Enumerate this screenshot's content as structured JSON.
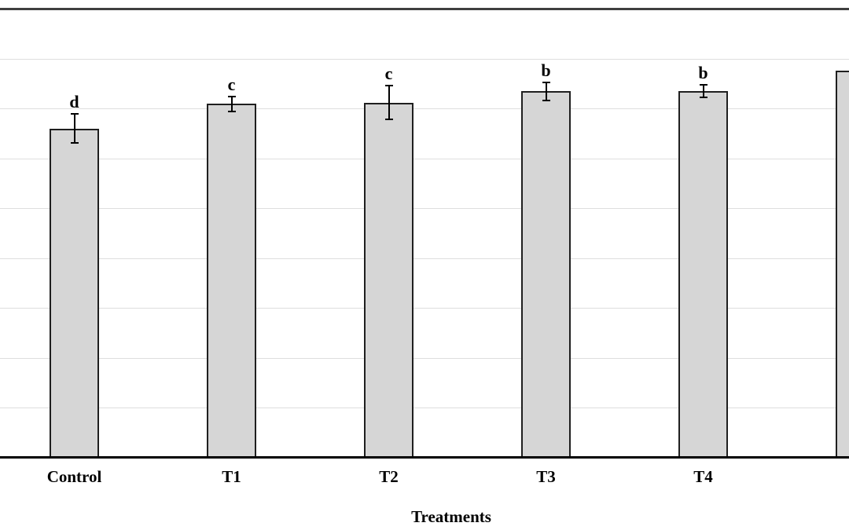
{
  "chart_data": {
    "type": "bar",
    "title": "",
    "xlabel": "Treatments",
    "ylabel": "",
    "categories": [
      "Control",
      "T1",
      "T2",
      "T3",
      "T4",
      ""
    ],
    "values": [
      6.6,
      7.1,
      7.12,
      7.35,
      7.35,
      7.76
    ],
    "error_bars": [
      0.29,
      0.15,
      0.34,
      0.18,
      0.13,
      0
    ],
    "sig_letters": [
      "d",
      "c",
      "c",
      "b",
      "b",
      ""
    ],
    "value_note": "y-axis tick labels are cropped out of the visible frame; values are measured in horizontal-gridline intervals above the baseline",
    "ylim": [
      0,
      9
    ],
    "gridline_step": 1,
    "grid": "horizontal",
    "legend": "none",
    "last_bar_clipped": true,
    "colors": {
      "bar_fill": "#d6d6d6",
      "bar_border": "#1f1f1f",
      "gridline": "#dedede",
      "axis_line": "#000000",
      "top_border": "#3f3f3f",
      "background": "#ffffff",
      "text": "#000000"
    }
  }
}
